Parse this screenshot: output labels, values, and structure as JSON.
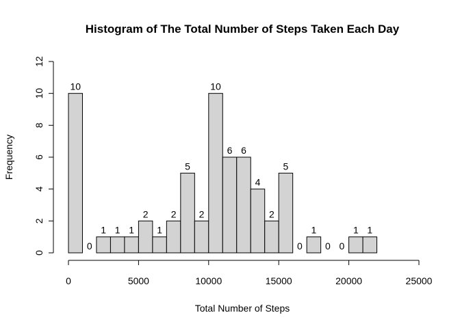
{
  "chart_data": {
    "type": "bar",
    "title": "Histogram of The Total Number of Steps Taken Each Day",
    "xlabel": "Total Number of Steps",
    "ylabel": "Frequency",
    "bin_width": 1000,
    "bin_start": 0,
    "values": [
      10,
      0,
      1,
      1,
      1,
      2,
      1,
      2,
      5,
      2,
      10,
      6,
      6,
      4,
      2,
      5,
      0,
      1,
      0,
      0,
      1,
      1
    ],
    "xlim": [
      0,
      25000
    ],
    "ylim": [
      0,
      12
    ],
    "x_ticks": [
      0,
      5000,
      10000,
      15000,
      20000,
      25000
    ],
    "y_ticks": [
      0,
      2,
      4,
      6,
      8,
      10,
      12
    ],
    "bar_color": "#d3d3d3",
    "grid": false,
    "legend": "none"
  }
}
